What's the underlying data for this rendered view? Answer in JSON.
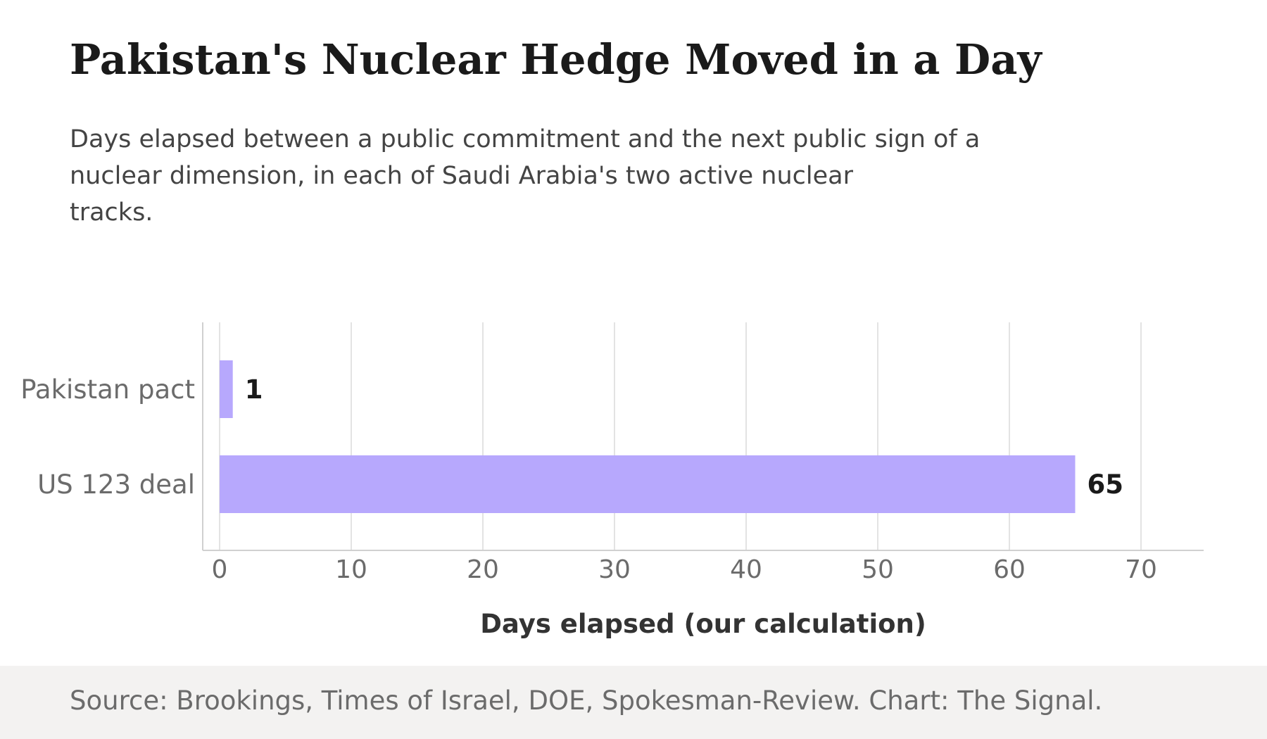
{
  "chart_data": {
    "type": "bar",
    "orientation": "horizontal",
    "title": "Pakistan's Nuclear Hedge Moved in a Day",
    "subtitle_lines": [
      "Days elapsed between a public commitment and the next public sign of a",
      "nuclear dimension, in each of Saudi Arabia's two active nuclear",
      "tracks."
    ],
    "categories": [
      "Pakistan pact",
      "US 123 deal"
    ],
    "values": [
      1,
      65
    ],
    "value_labels": [
      "1",
      "65"
    ],
    "xlabel": "Days elapsed (our calculation)",
    "ylabel": "",
    "xlim": [
      0,
      75
    ],
    "xticks": [
      "0",
      "10",
      "20",
      "30",
      "40",
      "50",
      "60",
      "70"
    ],
    "grid": "vertical",
    "legend": "none",
    "colors": {
      "bar": "#b7a8fd",
      "grid": "#e3e3e3",
      "axis": "#d0d0d0",
      "tick_text": "#6b6b6b",
      "label_text": "#1a1a1a",
      "xlabel_text": "#333333"
    }
  },
  "footer": {
    "source": "Source: Brookings, Times of Israel, DOE, Spokesman-Review. Chart: The Signal."
  }
}
